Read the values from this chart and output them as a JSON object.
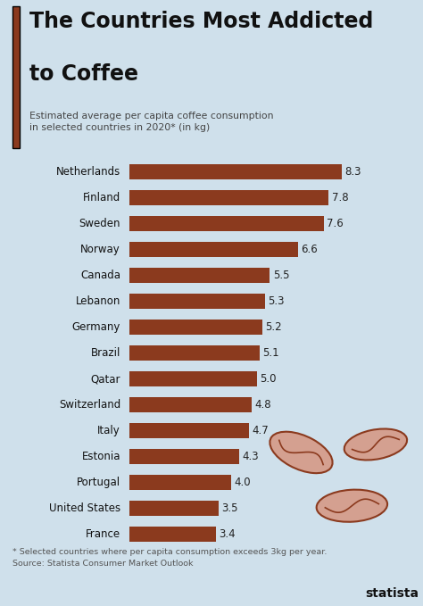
{
  "title_line1": "The Countries Most Addicted",
  "title_line2": "to Coffee",
  "subtitle": "Estimated average per capita coffee consumption\nin selected countries in 2020* (in kg)",
  "footnote": "* Selected countries where per capita consumption exceeds 3kg per year.\nSource: Statista Consumer Market Outlook",
  "countries": [
    "Netherlands",
    "Finland",
    "Sweden",
    "Norway",
    "Canada",
    "Lebanon",
    "Germany",
    "Brazil",
    "Qatar",
    "Switzerland",
    "Italy",
    "Estonia",
    "Portugal",
    "United States",
    "France"
  ],
  "values": [
    8.3,
    7.8,
    7.6,
    6.6,
    5.5,
    5.3,
    5.2,
    5.1,
    5.0,
    4.8,
    4.7,
    4.3,
    4.0,
    3.5,
    3.4
  ],
  "bar_color": "#8B3A1E",
  "bg_color": "#cfe0eb",
  "title_color": "#111111",
  "subtitle_color": "#444444",
  "footnote_color": "#555555",
  "value_color": "#222222",
  "accent_color": "#8B3A1E",
  "bean_fill": "#d4a090",
  "bean_edge": "#8B3A1E",
  "xlim_max": 9.5,
  "bar_height": 0.58,
  "title_fontsize": 17,
  "subtitle_fontsize": 7.8,
  "label_fontsize": 8.5,
  "value_fontsize": 8.5,
  "footnote_fontsize": 6.8
}
